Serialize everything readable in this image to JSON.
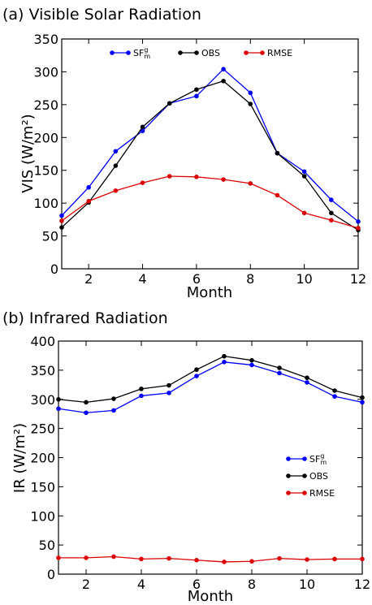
{
  "chart_data": [
    {
      "type": "line",
      "title": "(a) Visible Solar Radiation",
      "xlabel": "Month",
      "ylabel": "VIS (W/m²)",
      "xlim": [
        1,
        12
      ],
      "ylim": [
        0,
        350
      ],
      "xticks": [
        2,
        4,
        6,
        8,
        10,
        12
      ],
      "yticks": [
        0,
        50,
        100,
        150,
        200,
        250,
        300,
        350
      ],
      "legend_position": "top",
      "x": [
        1,
        2,
        3,
        4,
        5,
        6,
        7,
        8,
        9,
        10,
        11,
        12
      ],
      "series": [
        {
          "name": "SF",
          "name_sup": "g",
          "name_sub": "m",
          "color": "#0000ff",
          "values": [
            81,
            124,
            179,
            210,
            252,
            263,
            304,
            268,
            176,
            148,
            105,
            72
          ]
        },
        {
          "name": "OBS",
          "color": "#000000",
          "values": [
            63,
            101,
            157,
            216,
            252,
            273,
            286,
            251,
            176,
            141,
            85,
            59
          ]
        },
        {
          "name": "RMSE",
          "color": "#dd0000",
          "values": [
            73,
            103,
            119,
            131,
            141,
            140,
            136,
            130,
            112,
            85,
            74,
            62
          ]
        }
      ]
    },
    {
      "type": "line",
      "title": "(b) Infrared Radiation",
      "xlabel": "Month",
      "ylabel": "IR (W/m²)",
      "xlim": [
        1,
        12
      ],
      "ylim": [
        0,
        400
      ],
      "xticks": [
        2,
        4,
        6,
        8,
        10,
        12
      ],
      "yticks": [
        0,
        50,
        100,
        150,
        200,
        250,
        300,
        350,
        400
      ],
      "legend_position": "right",
      "x": [
        1,
        2,
        3,
        4,
        5,
        6,
        7,
        8,
        9,
        10,
        11,
        12
      ],
      "series": [
        {
          "name": "SF",
          "name_sup": "g",
          "name_sub": "m",
          "color": "#0000ff",
          "values": [
            284,
            277,
            281,
            306,
            311,
            340,
            364,
            359,
            345,
            329,
            305,
            295
          ]
        },
        {
          "name": "OBS",
          "color": "#000000",
          "values": [
            300,
            295,
            301,
            318,
            324,
            351,
            374,
            367,
            354,
            337,
            315,
            303
          ]
        },
        {
          "name": "RMSE",
          "color": "#dd0000",
          "values": [
            28,
            28,
            30,
            26,
            27,
            24,
            21,
            22,
            27,
            25,
            26,
            26
          ]
        }
      ]
    }
  ]
}
